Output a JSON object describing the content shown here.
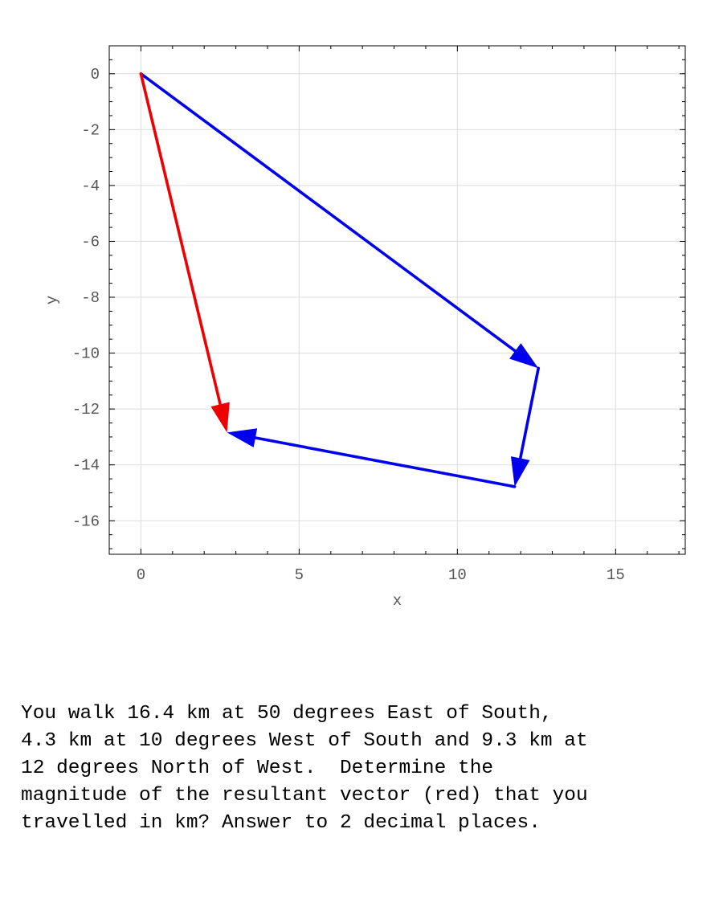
{
  "chart_data": {
    "type": "vector-diagram",
    "xlabel": "x",
    "ylabel": "y",
    "xlim": [
      -1,
      17.2
    ],
    "ylim": [
      -17.2,
      1
    ],
    "xticks": [
      0,
      5,
      10,
      15
    ],
    "yticks": [
      0,
      -2,
      -4,
      -6,
      -8,
      -10,
      -12,
      -14,
      -16
    ],
    "grid": true,
    "vectors": [
      {
        "from": [
          0,
          0
        ],
        "to": [
          12.56,
          -10.54
        ],
        "color": "#0000ee"
      },
      {
        "from": [
          12.56,
          -10.54
        ],
        "to": [
          11.81,
          -14.78
        ],
        "color": "#0000ee"
      },
      {
        "from": [
          11.81,
          -14.78
        ],
        "to": [
          2.72,
          -12.84
        ],
        "color": "#0000ee"
      },
      {
        "from": [
          0,
          0
        ],
        "to": [
          2.72,
          -12.84
        ],
        "color": "#ee0000"
      }
    ]
  },
  "question": {
    "lines": [
      "You walk 16.4 km at 50 degrees East of South,",
      "4.3 km at 10 degrees West of South and 9.3 km at",
      "12 degrees North of West.  Determine the",
      "magnitude of the resultant vector (red) that you",
      "travelled in km? Answer to 2 decimal places."
    ]
  }
}
